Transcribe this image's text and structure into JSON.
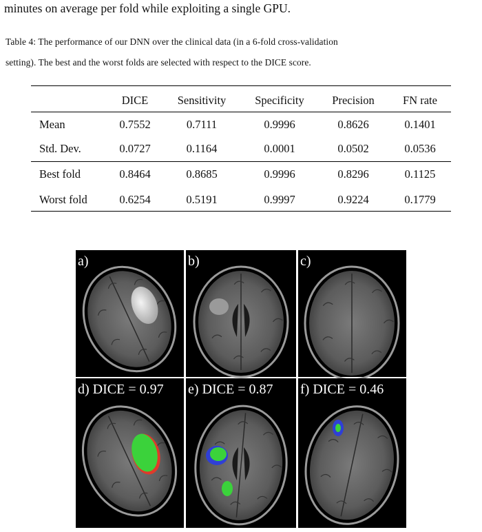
{
  "text": {
    "top_line": "minutes on average per fold while exploiting a single GPU."
  },
  "table": {
    "caption_lines": [
      "Table 4: The performance of our DNN over the clinical data (in a 6-fold cross-validation",
      "setting). The best and the worst folds are selected with respect to the DICE score."
    ],
    "header": [
      "",
      "DICE",
      "Sensitivity",
      "Specificity",
      "Precision",
      "FN rate"
    ],
    "rows": [
      [
        "Mean",
        0.7552,
        0.7111,
        0.9996,
        0.8626,
        0.1401
      ],
      [
        "Std. Dev.",
        0.0727,
        0.1164,
        0.0001,
        0.0502,
        0.0536
      ],
      [
        "Best fold",
        0.8464,
        0.8685,
        0.9996,
        0.8296,
        0.1125
      ],
      [
        "Worst fold",
        0.6254,
        0.5191,
        0.9997,
        0.9224,
        0.1779
      ]
    ]
  },
  "figure": {
    "panels": [
      {
        "label": "a)"
      },
      {
        "label": "b)"
      },
      {
        "label": "c)"
      },
      {
        "label": "d) DICE = 0.97"
      },
      {
        "label": "e) DICE = 0.87"
      },
      {
        "label": "f) DICE = 0.46"
      }
    ]
  }
}
